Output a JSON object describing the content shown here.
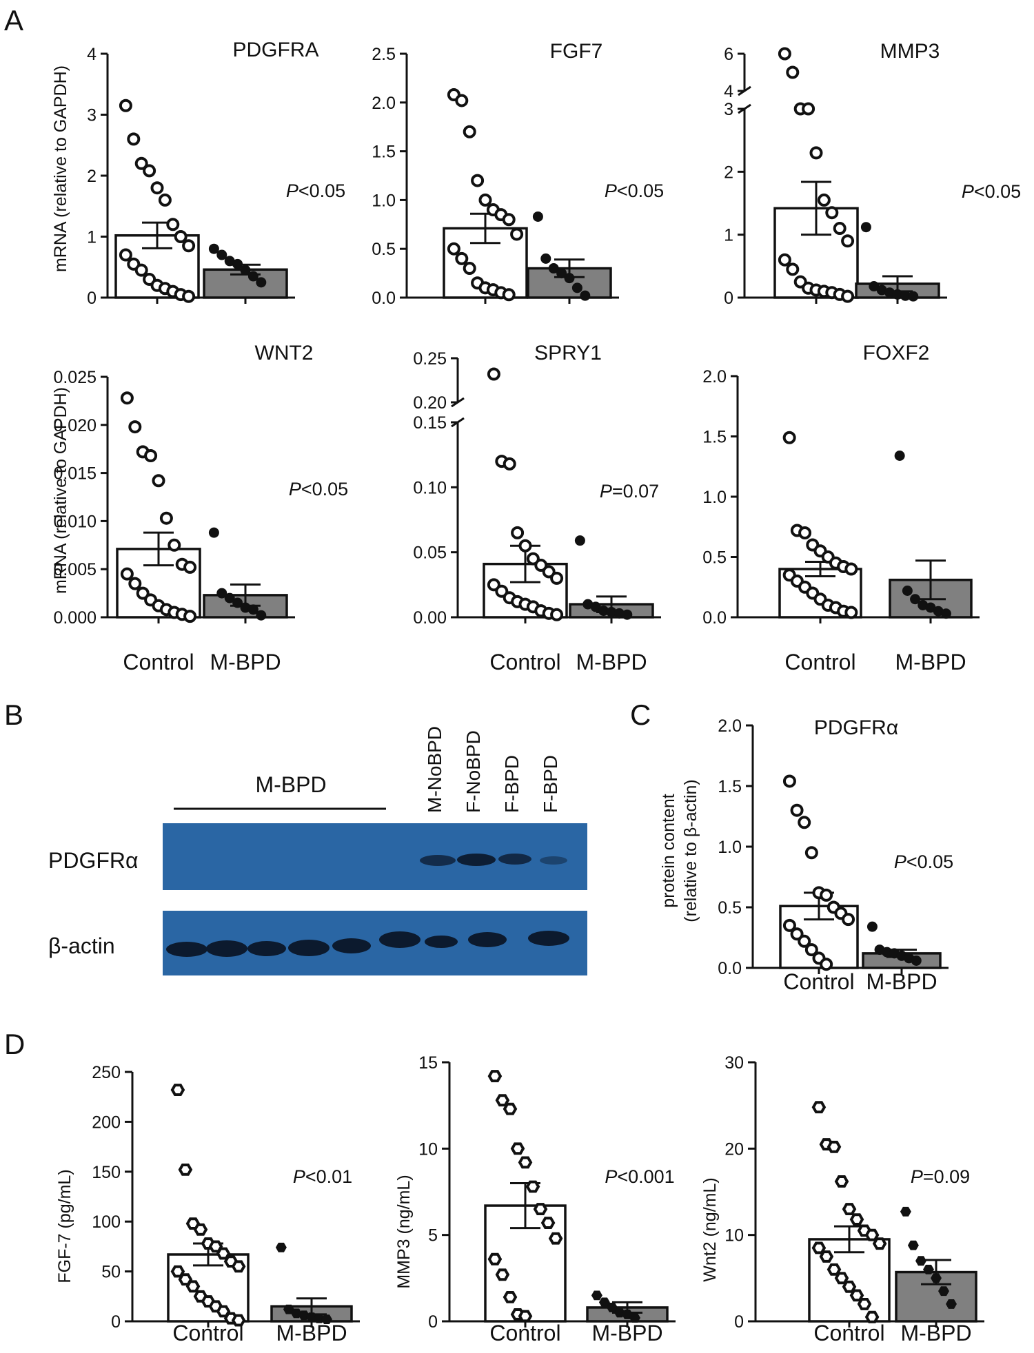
{
  "panel_labels": {
    "A": "A",
    "B": "B",
    "C": "C",
    "D": "D"
  },
  "ylabels": {
    "mrna": "mRNA (relative to GAPDH)",
    "protein_line1": "protein content",
    "protein_line2": "(relative to β-actin)",
    "fgf7": "FGF-7 (pg/mL)",
    "mmp3": "MMP3 (ng/mL)",
    "wnt2": "Wnt2 (ng/mL)"
  },
  "categories": [
    "Control",
    "M-BPD"
  ],
  "colors": {
    "control_fill": "#ffffff",
    "bpd_fill": "#808080",
    "ink": "#111111",
    "blot_bg": "#2a66a4",
    "band": "#0c1a2e"
  },
  "blot": {
    "group_label": "M-BPD",
    "lane_labels": [
      "M-NoBPD",
      "F-NoBPD",
      "F-BPD",
      "F-BPD"
    ],
    "row_labels": [
      "PDGFRα",
      "β-actin"
    ]
  },
  "chart_data": [
    {
      "id": "pdgfra",
      "type": "bar",
      "title": "PDGFRA",
      "ylabel": "mRNA (relative to GAPDH)",
      "categories": [
        "Control",
        "M-BPD"
      ],
      "ylim": [
        0,
        4
      ],
      "yticks": [
        {
          "v": 0,
          "t": "0"
        },
        {
          "v": 1,
          "t": "1"
        },
        {
          "v": 2,
          "t": "2"
        },
        {
          "v": 3,
          "t": "3"
        },
        {
          "v": 4,
          "t": "4"
        }
      ],
      "means": [
        1.02,
        0.46
      ],
      "sem": [
        0.21,
        0.08
      ],
      "points": [
        [
          3.15,
          2.6,
          2.2,
          2.08,
          1.8,
          1.6,
          1.2,
          1.0,
          0.85,
          0.7,
          0.55,
          0.45,
          0.3,
          0.2,
          0.15,
          0.1,
          0.05,
          0.02
        ],
        [
          0.8,
          0.7,
          0.6,
          0.55,
          0.45,
          0.35,
          0.25
        ]
      ],
      "pvalue": {
        "label": "P",
        "text": "<0.05"
      }
    },
    {
      "id": "fgf7",
      "type": "bar",
      "title": "FGF7",
      "ylabel": "",
      "categories": [
        "Control",
        "M-BPD"
      ],
      "ylim": [
        0,
        2.5
      ],
      "yticks": [
        {
          "v": 0,
          "t": "0.0"
        },
        {
          "v": 0.5,
          "t": "0.5"
        },
        {
          "v": 1,
          "t": "1.0"
        },
        {
          "v": 1.5,
          "t": "1.5"
        },
        {
          "v": 2,
          "t": "2.0"
        },
        {
          "v": 2.5,
          "t": "2.5"
        }
      ],
      "means": [
        0.71,
        0.3
      ],
      "sem": [
        0.15,
        0.09
      ],
      "points": [
        [
          2.08,
          2.02,
          1.7,
          1.2,
          1.0,
          0.9,
          0.85,
          0.8,
          0.65,
          0.5,
          0.4,
          0.3,
          0.15,
          0.1,
          0.08,
          0.05,
          0.03
        ],
        [
          0.83,
          0.4,
          0.3,
          0.25,
          0.2,
          0.1,
          0.02
        ]
      ],
      "pvalue": {
        "label": "P",
        "text": "<0.05"
      }
    },
    {
      "id": "mmp3",
      "type": "bar",
      "title": "MMP3",
      "ylabel": "",
      "categories": [
        "Control",
        "M-BPD"
      ],
      "ylim": [
        0,
        3
      ],
      "broken": {
        "lower_max": 3,
        "upper_min": 4,
        "upper_max": 6
      },
      "yticks": [
        {
          "v": 0,
          "t": "0"
        },
        {
          "v": 1,
          "t": "1"
        },
        {
          "v": 2,
          "t": "2"
        },
        {
          "v": 3,
          "t": "3"
        },
        {
          "v": 4,
          "t": "4"
        },
        {
          "v": 6,
          "t": "6"
        }
      ],
      "means": [
        1.42,
        0.22
      ],
      "sem": [
        0.42,
        0.12
      ],
      "points": [
        [
          6.0,
          5.0,
          3.0,
          3.0,
          2.3,
          1.55,
          1.35,
          1.1,
          0.9,
          0.6,
          0.45,
          0.25,
          0.15,
          0.12,
          0.1,
          0.08,
          0.05,
          0.02
        ],
        [
          1.12,
          0.18,
          0.12,
          0.08,
          0.05,
          0.03,
          0.02
        ]
      ],
      "pvalue": {
        "label": "P",
        "text": "<0.05"
      }
    },
    {
      "id": "wnt2",
      "type": "bar",
      "title": "WNT2",
      "ylabel": "mRNA (relative to GAPDH)",
      "categories": [
        "Control",
        "M-BPD"
      ],
      "ylim": [
        0,
        0.025
      ],
      "yticks": [
        {
          "v": 0,
          "t": "0.000"
        },
        {
          "v": 0.005,
          "t": "0.005"
        },
        {
          "v": 0.01,
          "t": "0.010"
        },
        {
          "v": 0.015,
          "t": "0.015"
        },
        {
          "v": 0.02,
          "t": "0.020"
        },
        {
          "v": 0.025,
          "t": "0.025"
        }
      ],
      "means": [
        0.0071,
        0.0023
      ],
      "sem": [
        0.0017,
        0.0011
      ],
      "points": [
        [
          0.0228,
          0.0198,
          0.0172,
          0.0168,
          0.0142,
          0.0103,
          0.0075,
          0.0055,
          0.0052,
          0.0045,
          0.0035,
          0.0025,
          0.0018,
          0.0012,
          0.0008,
          0.0005,
          0.0003,
          0.0001
        ],
        [
          0.0088,
          0.0025,
          0.002,
          0.0015,
          0.001,
          0.0008,
          0.0002
        ]
      ],
      "pvalue": {
        "label": "P",
        "text": "<0.05"
      }
    },
    {
      "id": "spry1",
      "type": "bar",
      "title": "SPRY1",
      "ylabel": "",
      "categories": [
        "Control",
        "M-BPD"
      ],
      "ylim": [
        0,
        0.15
      ],
      "broken": {
        "lower_max": 0.15,
        "upper_min": 0.2,
        "upper_max": 0.25
      },
      "yticks": [
        {
          "v": 0,
          "t": "0.00"
        },
        {
          "v": 0.05,
          "t": "0.05"
        },
        {
          "v": 0.1,
          "t": "0.10"
        },
        {
          "v": 0.15,
          "t": "0.15"
        },
        {
          "v": 0.2,
          "t": "0.20"
        },
        {
          "v": 0.25,
          "t": "0.25"
        }
      ],
      "means": [
        0.041,
        0.01
      ],
      "sem": [
        0.014,
        0.006
      ],
      "points": [
        [
          0.232,
          0.12,
          0.118,
          0.065,
          0.055,
          0.045,
          0.04,
          0.035,
          0.03,
          0.025,
          0.02,
          0.015,
          0.012,
          0.01,
          0.008,
          0.005,
          0.003,
          0.002
        ],
        [
          0.059,
          0.01,
          0.008,
          0.005,
          0.004,
          0.003,
          0.002
        ]
      ],
      "pvalue": {
        "label": "P",
        "text": "=0.07"
      }
    },
    {
      "id": "foxf2",
      "type": "bar",
      "title": "FOXF2",
      "ylabel": "",
      "categories": [
        "Control",
        "M-BPD"
      ],
      "ylim": [
        0,
        2
      ],
      "yticks": [
        {
          "v": 0,
          "t": "0.0"
        },
        {
          "v": 0.5,
          "t": "0.5"
        },
        {
          "v": 1,
          "t": "1.0"
        },
        {
          "v": 1.5,
          "t": "1.5"
        },
        {
          "v": 2,
          "t": "2.0"
        }
      ],
      "means": [
        0.4,
        0.31
      ],
      "sem": [
        0.06,
        0.16
      ],
      "points": [
        [
          1.49,
          0.72,
          0.7,
          0.6,
          0.55,
          0.5,
          0.45,
          0.42,
          0.4,
          0.35,
          0.3,
          0.25,
          0.2,
          0.15,
          0.1,
          0.08,
          0.05,
          0.04
        ],
        [
          1.34,
          0.22,
          0.15,
          0.1,
          0.08,
          0.05,
          0.03
        ]
      ],
      "pvalue": null
    },
    {
      "id": "pdgfra_protein",
      "type": "bar",
      "title": "PDGFRα",
      "ylabel": "protein content (relative to β-actin)",
      "categories": [
        "Control",
        "M-BPD"
      ],
      "ylim": [
        0,
        2
      ],
      "yticks": [
        {
          "v": 0,
          "t": "0.0"
        },
        {
          "v": 0.5,
          "t": "0.5"
        },
        {
          "v": 1,
          "t": "1.0"
        },
        {
          "v": 1.5,
          "t": "1.5"
        },
        {
          "v": 2,
          "t": "2.0"
        }
      ],
      "means": [
        0.51,
        0.12
      ],
      "sem": [
        0.11,
        0.03
      ],
      "points": [
        [
          1.54,
          1.3,
          1.2,
          0.95,
          0.62,
          0.6,
          0.5,
          0.45,
          0.4,
          0.35,
          0.28,
          0.22,
          0.15,
          0.08,
          0.03
        ],
        [
          0.34,
          0.15,
          0.13,
          0.12,
          0.1,
          0.08,
          0.06
        ]
      ],
      "pvalue": {
        "label": "P",
        "text": "<0.05"
      }
    },
    {
      "id": "fgf7_protein",
      "type": "bar",
      "title": "",
      "ylabel": "FGF-7 (pg/mL)",
      "categories": [
        "Control",
        "M-BPD"
      ],
      "ylim": [
        0,
        250
      ],
      "yticks": [
        {
          "v": 0,
          "t": "0"
        },
        {
          "v": 50,
          "t": "50"
        },
        {
          "v": 100,
          "t": "100"
        },
        {
          "v": 150,
          "t": "150"
        },
        {
          "v": 200,
          "t": "200"
        },
        {
          "v": 250,
          "t": "250"
        }
      ],
      "means": [
        67,
        15
      ],
      "sem": [
        11,
        8
      ],
      "points": [
        [
          232,
          152,
          98,
          92,
          78,
          75,
          68,
          60,
          55,
          50,
          42,
          35,
          25,
          20,
          15,
          10,
          3,
          1
        ],
        [
          74,
          12,
          8,
          6,
          4,
          3,
          2
        ]
      ],
      "pvalue": {
        "label": "P",
        "text": "<0.01"
      }
    },
    {
      "id": "mmp3_protein",
      "type": "bar",
      "title": "",
      "ylabel": "MMP3 (ng/mL)",
      "categories": [
        "Control",
        "M-BPD"
      ],
      "ylim": [
        0,
        15
      ],
      "yticks": [
        {
          "v": 0,
          "t": "0"
        },
        {
          "v": 5,
          "t": "5"
        },
        {
          "v": 10,
          "t": "10"
        },
        {
          "v": 15,
          "t": "15"
        }
      ],
      "means": [
        6.7,
        0.8
      ],
      "sem": [
        1.3,
        0.3
      ],
      "points": [
        [
          14.2,
          12.8,
          12.3,
          10,
          9.2,
          7.8,
          6.5,
          5.7,
          4.8,
          3.6,
          2.7,
          1.4,
          0.4,
          0.3
        ],
        [
          1.5,
          1.1,
          0.8,
          0.5,
          0.4,
          0.2
        ]
      ],
      "pvalue": {
        "label": "P",
        "text": "<0.001"
      }
    },
    {
      "id": "wnt2_protein",
      "type": "bar",
      "title": "",
      "ylabel": "Wnt2 (ng/mL)",
      "categories": [
        "Control",
        "M-BPD"
      ],
      "ylim": [
        0,
        30
      ],
      "yticks": [
        {
          "v": 0,
          "t": "0"
        },
        {
          "v": 10,
          "t": "10"
        },
        {
          "v": 20,
          "t": "20"
        },
        {
          "v": 30,
          "t": "30"
        }
      ],
      "means": [
        9.5,
        5.7
      ],
      "sem": [
        1.5,
        1.4
      ],
      "points": [
        [
          24.8,
          20.5,
          20.2,
          16.2,
          13,
          11.8,
          10.5,
          10,
          9,
          8.5,
          7.5,
          6,
          5,
          4,
          3,
          2,
          0.5
        ],
        [
          12.7,
          8.8,
          7,
          6,
          5,
          3.5,
          2
        ]
      ],
      "pvalue": {
        "label": "P",
        "text": "=0.09"
      }
    }
  ]
}
